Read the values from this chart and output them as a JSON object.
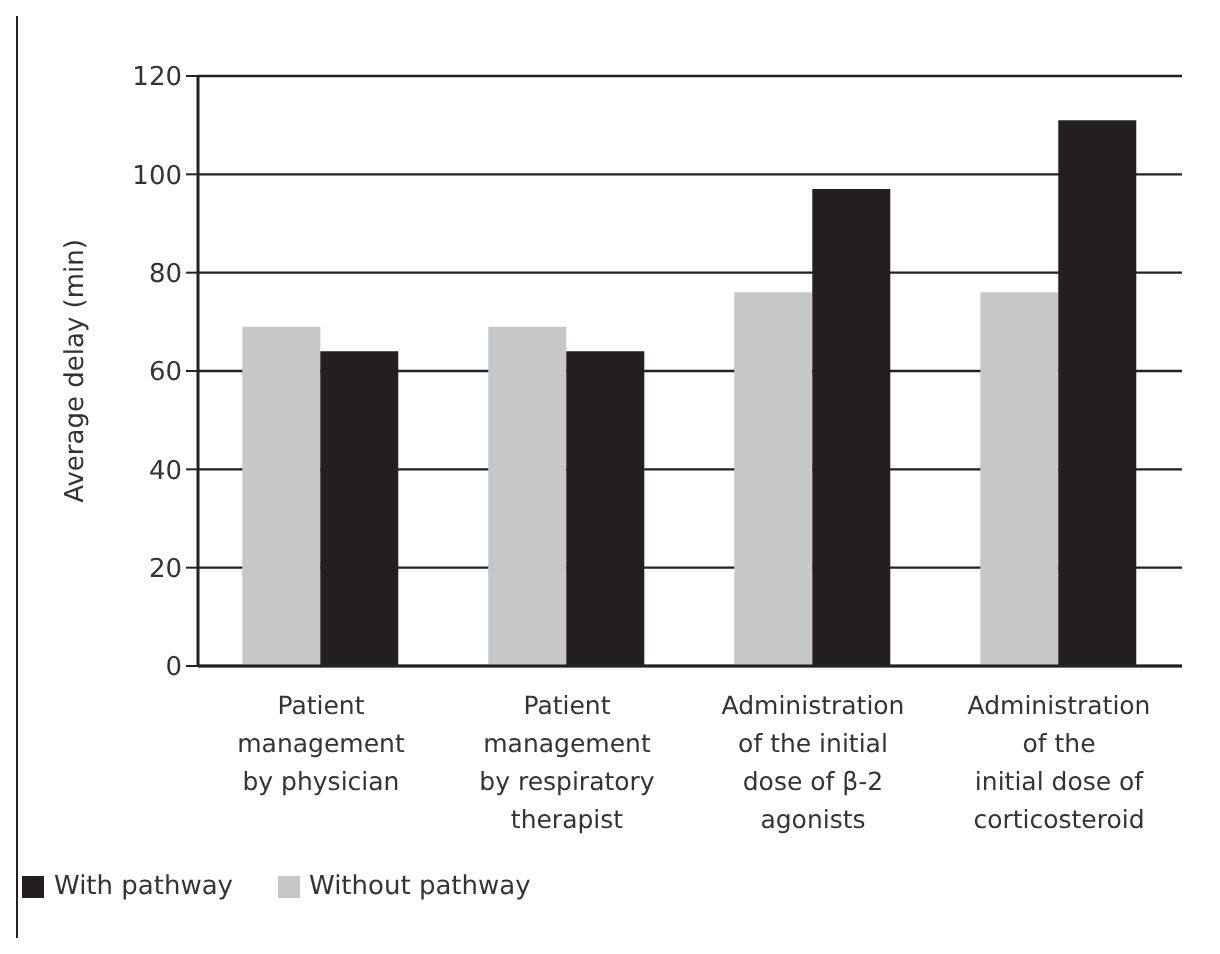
{
  "chart_data": {
    "type": "bar",
    "ylabel": "Average delay (min)",
    "categories": [
      "Patient\nmanagement\nby physician",
      "Patient\nmanagement\nby respiratory\ntherapist",
      "Administration\nof the initial\ndose of β-2\nagonists",
      "Administration\nof the\ninitial dose of\ncorticosteroid"
    ],
    "series": [
      {
        "name": "Without pathway",
        "color": "#c6c7c9",
        "values": [
          69,
          69,
          76,
          76
        ]
      },
      {
        "name": "With pathway",
        "color": "#231f20",
        "values": [
          64,
          64,
          97,
          111
        ]
      }
    ],
    "ylim": [
      0,
      120
    ],
    "yticks": [
      0,
      20,
      40,
      60,
      80,
      100,
      120
    ],
    "grid": "y",
    "legend": "bottom left"
  }
}
